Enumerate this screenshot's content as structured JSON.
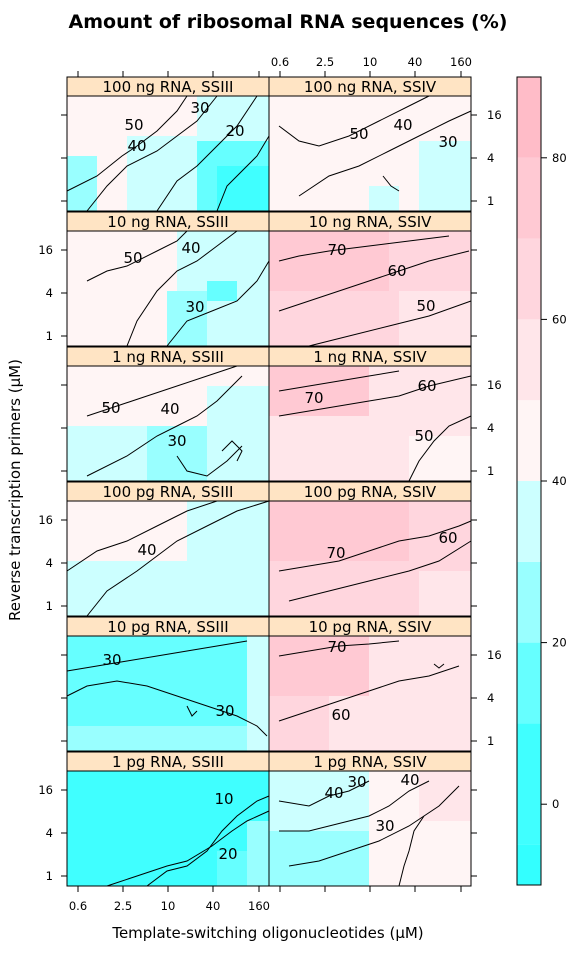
{
  "chart_data": {
    "type": "heatmap",
    "title": "Amount of ribosomal RNA sequences (%)",
    "xlabel": "Template-switching oligonucleotides (μM)",
    "ylabel": "Reverse transcription primers (μM)",
    "x_ticks": [
      "0.6",
      "2.5",
      "10",
      "40",
      "160"
    ],
    "y_ticks": [
      "1",
      "4",
      "16"
    ],
    "colorbar": {
      "ticks": [
        "0",
        "20",
        "40",
        "60",
        "80"
      ],
      "range": [
        -10,
        90
      ],
      "bands": [
        {
          "from": -10,
          "to": -5,
          "color": "#33ffff"
        },
        {
          "from": -5,
          "to": 10,
          "color": "#40ffff"
        },
        {
          "from": 10,
          "to": 20,
          "color": "#66ffff"
        },
        {
          "from": 20,
          "to": 30,
          "color": "#99ffff"
        },
        {
          "from": 30,
          "to": 40,
          "color": "#ccffff"
        },
        {
          "from": 40,
          "to": 50,
          "color": "#fff5f5"
        },
        {
          "from": 50,
          "to": 60,
          "color": "#ffe6ea"
        },
        {
          "from": 60,
          "to": 70,
          "color": "#ffd6de"
        },
        {
          "from": 70,
          "to": 80,
          "color": "#ffc9d3"
        },
        {
          "from": 80,
          "to": 90,
          "color": "#ffbcc8"
        }
      ]
    },
    "panels": [
      {
        "title": "100 ng RNA, SSIII",
        "bg": "#ccffff",
        "labels": [
          "30",
          "50",
          "40",
          "20"
        ]
      },
      {
        "title": "100 ng RNA, SSIV",
        "bg": "#fff5f5",
        "labels": [
          "50",
          "40",
          "30"
        ]
      },
      {
        "title": "10 ng RNA, SSIII",
        "bg": "#fff5f5",
        "labels": [
          "50",
          "40",
          "30"
        ]
      },
      {
        "title": "10 ng RNA, SSIV",
        "bg": "#ffd6de",
        "labels": [
          "70",
          "60",
          "50"
        ]
      },
      {
        "title": "1 ng RNA, SSIII",
        "bg": "#fff5f5",
        "labels": [
          "50",
          "40",
          "30"
        ]
      },
      {
        "title": "1 ng RNA, SSIV",
        "bg": "#ffe6ea",
        "labels": [
          "70",
          "60",
          "50"
        ]
      },
      {
        "title": "100 pg RNA, SSIII",
        "bg": "#ccffff",
        "labels": [
          "40"
        ]
      },
      {
        "title": "100 pg RNA, SSIV",
        "bg": "#ffd6de",
        "labels": [
          "70",
          "60"
        ]
      },
      {
        "title": "10 pg RNA, SSIII",
        "bg": "#99ffff",
        "labels": [
          "30",
          "30"
        ]
      },
      {
        "title": "10 pg RNA, SSIV",
        "bg": "#ffe6ea",
        "labels": [
          "70",
          "60"
        ]
      },
      {
        "title": "1 pg RNA, SSIII",
        "bg": "#40ffff",
        "labels": [
          "10",
          "20"
        ]
      },
      {
        "title": "1 pg RNA, SSIV",
        "bg": "#ccffff",
        "labels": [
          "40",
          "30",
          "40",
          "30"
        ]
      }
    ]
  }
}
